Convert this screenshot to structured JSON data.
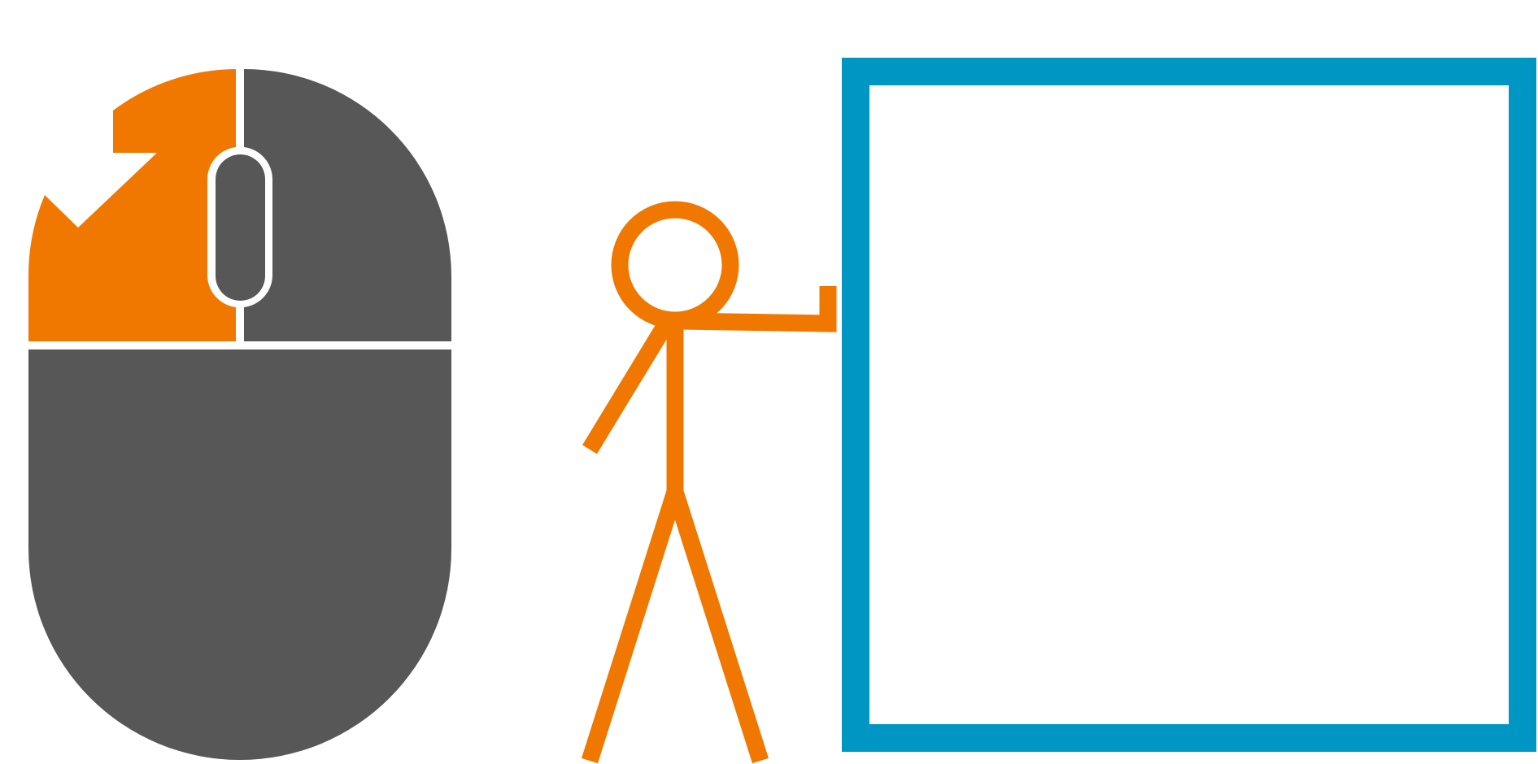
{
  "colors": {
    "background": "#ffffff",
    "mouse_body": "#575757",
    "left_click_highlight": "#f07800",
    "figure_stroke": "#f07800",
    "box_border": "#0096c3"
  },
  "icons": {
    "mouse": "mouse-left-click-icon",
    "pointer": "click-cursor-icon",
    "person": "stick-figure-icon",
    "target": "empty-square-frame"
  }
}
